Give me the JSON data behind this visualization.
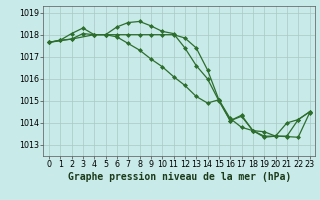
{
  "background_color": "#c8eae8",
  "grid_color": "#a8c8c4",
  "line_color": "#2d6e2d",
  "marker_color": "#2d6e2d",
  "xlabel": "Graphe pression niveau de la mer (hPa)",
  "ylim": [
    1012.5,
    1019.3
  ],
  "xlim": [
    -0.5,
    23.5
  ],
  "yticks": [
    1013,
    1014,
    1015,
    1016,
    1017,
    1018,
    1019
  ],
  "xticks": [
    0,
    1,
    2,
    3,
    4,
    5,
    6,
    7,
    8,
    9,
    10,
    11,
    12,
    13,
    14,
    15,
    16,
    17,
    18,
    19,
    20,
    21,
    22,
    23
  ],
  "series1_x": [
    0,
    1,
    2,
    3,
    4,
    5,
    6,
    7,
    8,
    9,
    10,
    11,
    12,
    13,
    14,
    15,
    16,
    17,
    18,
    19,
    20,
    21,
    22,
    23
  ],
  "series1_y": [
    1017.65,
    1017.75,
    1017.8,
    1018.05,
    1018.0,
    1018.0,
    1017.9,
    1017.6,
    1017.3,
    1016.9,
    1016.55,
    1016.1,
    1015.7,
    1015.2,
    1014.9,
    1015.05,
    1014.2,
    1013.8,
    1013.65,
    1013.6,
    1013.4,
    1013.4,
    1014.15,
    1014.5
  ],
  "series2_x": [
    0,
    1,
    2,
    3,
    4,
    5,
    6,
    7,
    8,
    9,
    10,
    11,
    12,
    13,
    14,
    15,
    16,
    17,
    18,
    19,
    20,
    21,
    22,
    23
  ],
  "series2_y": [
    1017.65,
    1017.75,
    1018.05,
    1018.3,
    1018.0,
    1018.0,
    1018.35,
    1018.55,
    1018.6,
    1018.4,
    1018.15,
    1018.05,
    1017.4,
    1016.6,
    1016.0,
    1015.0,
    1014.1,
    1014.35,
    1013.65,
    1013.35,
    1013.4,
    1014.0,
    1014.15,
    1014.5
  ],
  "series3_x": [
    0,
    2,
    4,
    5,
    6,
    7,
    8,
    9,
    10,
    11,
    12,
    13,
    14,
    15,
    16,
    17,
    18,
    19,
    20,
    21,
    22,
    23
  ],
  "series3_y": [
    1017.65,
    1017.8,
    1018.0,
    1018.0,
    1018.0,
    1018.0,
    1018.0,
    1018.0,
    1018.0,
    1018.0,
    1017.85,
    1017.4,
    1016.4,
    1015.05,
    1014.1,
    1014.3,
    1013.65,
    1013.4,
    1013.4,
    1013.38,
    1013.35,
    1014.45
  ],
  "tick_fontsize": 5.8,
  "label_fontsize": 7.0,
  "label_fontweight": "bold",
  "marker_size": 2.0,
  "line_width": 0.9
}
